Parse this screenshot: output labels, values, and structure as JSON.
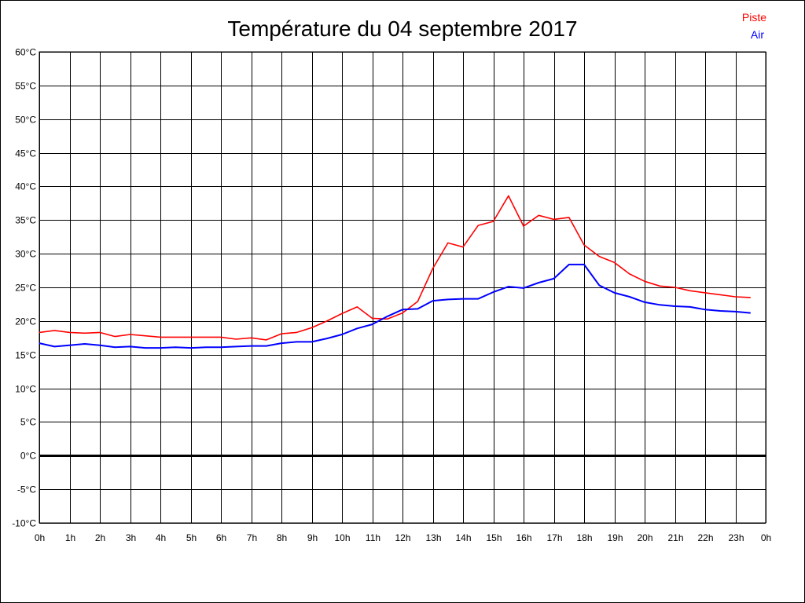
{
  "chart_data": {
    "type": "line",
    "title": "Température du 04 septembre 2017",
    "xlabel": "",
    "ylabel": "",
    "ylim": [
      -10,
      60
    ],
    "xlim": [
      0,
      24
    ],
    "grid": true,
    "legend_placement": "top-right",
    "y_ticks": [
      "-10°C",
      "-5°C",
      "0°C",
      "5°C",
      "10°C",
      "15°C",
      "20°C",
      "25°C",
      "30°C",
      "35°C",
      "40°C",
      "45°C",
      "50°C",
      "55°C",
      "60°C"
    ],
    "y_tick_values": [
      -10,
      -5,
      0,
      5,
      10,
      15,
      20,
      25,
      30,
      35,
      40,
      45,
      50,
      55,
      60
    ],
    "x_ticks": [
      "0h",
      "1h",
      "2h",
      "3h",
      "4h",
      "5h",
      "6h",
      "7h",
      "8h",
      "9h",
      "10h",
      "11h",
      "12h",
      "13h",
      "14h",
      "15h",
      "16h",
      "17h",
      "18h",
      "19h",
      "20h",
      "21h",
      "22h",
      "23h",
      "0h"
    ],
    "x": [
      0,
      0.5,
      1,
      1.5,
      2,
      2.5,
      3,
      3.5,
      4,
      4.5,
      5,
      5.5,
      6,
      6.5,
      7,
      7.5,
      8,
      8.5,
      9,
      9.5,
      10,
      10.5,
      11,
      11.5,
      12,
      12.5,
      13,
      13.5,
      14,
      14.5,
      15,
      15.5,
      16,
      16.5,
      17,
      17.5,
      18,
      18.5,
      19,
      19.5,
      20,
      20.5,
      21,
      21.5,
      22,
      22.5,
      23,
      23.5
    ],
    "series": [
      {
        "name": "Piste",
        "color": "#ff0000",
        "values": [
          18.3,
          18.6,
          18.3,
          18.2,
          18.3,
          17.7,
          18.0,
          17.8,
          17.6,
          17.6,
          17.6,
          17.6,
          17.6,
          17.3,
          17.5,
          17.2,
          18.1,
          18.3,
          19.0,
          20.0,
          21.1,
          22.1,
          20.4,
          20.3,
          21.2,
          22.9,
          27.8,
          31.6,
          31.0,
          34.2,
          34.8,
          38.6,
          34.1,
          35.7,
          35.1,
          35.4,
          31.3,
          29.6,
          28.7,
          27.0,
          25.9,
          25.2,
          25.0,
          24.5,
          24.2,
          23.9,
          23.6,
          23.5
        ]
      },
      {
        "name": "Air",
        "color": "#0000ff",
        "values": [
          16.7,
          16.2,
          16.4,
          16.6,
          16.4,
          16.1,
          16.2,
          16.0,
          16.0,
          16.1,
          16.0,
          16.1,
          16.1,
          16.2,
          16.3,
          16.3,
          16.7,
          16.9,
          16.9,
          17.4,
          18.0,
          18.9,
          19.5,
          20.7,
          21.7,
          21.8,
          23.0,
          23.2,
          23.3,
          23.3,
          24.3,
          25.1,
          24.9,
          25.7,
          26.3,
          28.4,
          28.4,
          25.3,
          24.2,
          23.6,
          22.8,
          22.4,
          22.2,
          22.1,
          21.7,
          21.5,
          21.4,
          21.2
        ]
      }
    ]
  }
}
